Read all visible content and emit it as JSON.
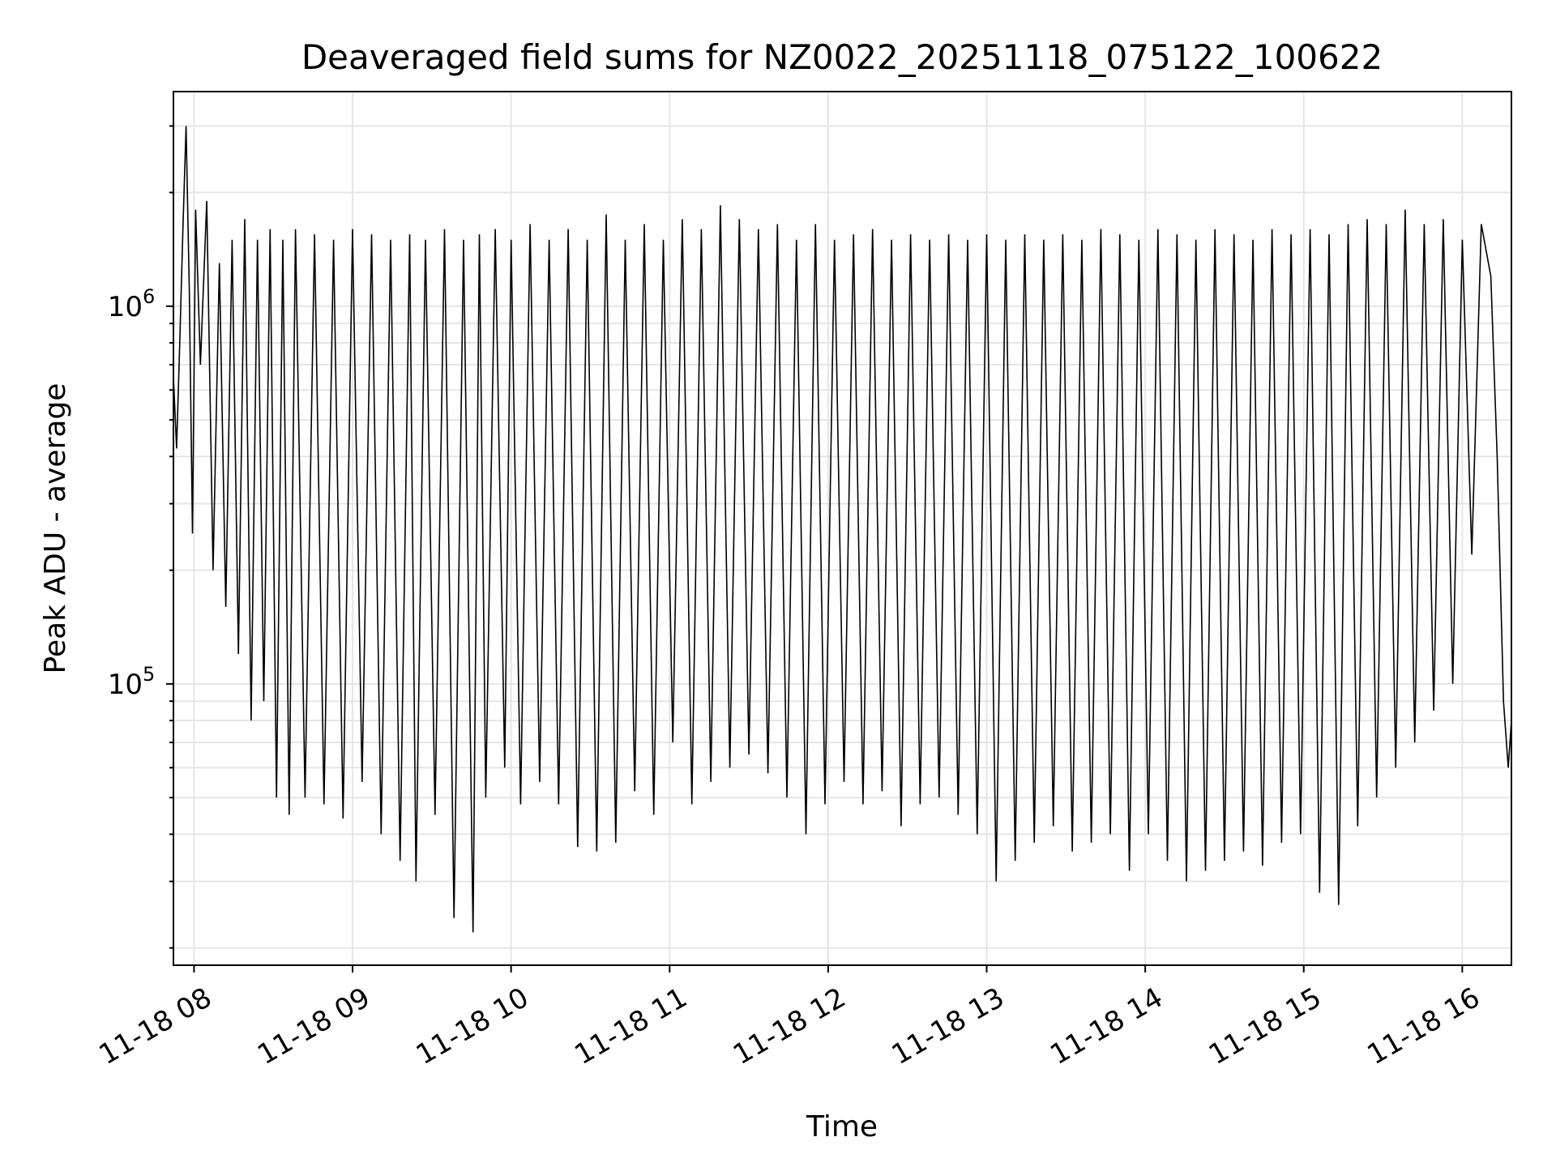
{
  "chart_data": {
    "type": "line",
    "title": "Deaveraged field sums for NZ0022_20251118_075122_100622",
    "xlabel": "Time",
    "ylabel": "Peak ADU - average",
    "yscale": "log",
    "xlim_hours": [
      7.87,
      16.31
    ],
    "ylim": [
      18000,
      3700000
    ],
    "x_ticks": [
      {
        "label": "11-18 08",
        "hour": 8
      },
      {
        "label": "11-18 09",
        "hour": 9
      },
      {
        "label": "11-18 10",
        "hour": 10
      },
      {
        "label": "11-18 11",
        "hour": 11
      },
      {
        "label": "11-18 12",
        "hour": 12
      },
      {
        "label": "11-18 13",
        "hour": 13
      },
      {
        "label": "11-18 14",
        "hour": 14
      },
      {
        "label": "11-18 15",
        "hour": 15
      },
      {
        "label": "11-18 16",
        "hour": 16
      }
    ],
    "y_ticks": [
      {
        "base": "10",
        "exp": "5",
        "value": 100000
      },
      {
        "base": "10",
        "exp": "6",
        "value": 1000000
      }
    ],
    "grid": true,
    "line_color": "#000000",
    "series": [
      {
        "name": "deaveraged field sum",
        "x_hours": [
          7.87,
          7.89,
          7.91,
          7.93,
          7.95,
          7.97,
          7.99,
          8.01,
          8.04,
          8.08,
          8.12,
          8.16,
          8.2,
          8.24,
          8.28,
          8.32,
          8.36,
          8.4,
          8.44,
          8.48,
          8.52,
          8.56,
          8.6,
          8.64,
          8.7,
          8.76,
          8.82,
          8.88,
          8.94,
          9.0,
          9.06,
          9.12,
          9.18,
          9.24,
          9.3,
          9.36,
          9.4,
          9.46,
          9.52,
          9.58,
          9.64,
          9.7,
          9.76,
          9.8,
          9.84,
          9.9,
          9.96,
          10.0,
          10.06,
          10.12,
          10.18,
          10.24,
          10.3,
          10.36,
          10.42,
          10.48,
          10.54,
          10.6,
          10.66,
          10.72,
          10.78,
          10.84,
          10.9,
          10.96,
          11.02,
          11.08,
          11.14,
          11.2,
          11.26,
          11.32,
          11.38,
          11.44,
          11.5,
          11.56,
          11.62,
          11.68,
          11.74,
          11.8,
          11.86,
          11.92,
          11.98,
          12.04,
          12.1,
          12.16,
          12.22,
          12.28,
          12.34,
          12.4,
          12.46,
          12.52,
          12.58,
          12.64,
          12.7,
          12.76,
          12.82,
          12.88,
          12.94,
          13.0,
          13.06,
          13.12,
          13.18,
          13.24,
          13.3,
          13.36,
          13.42,
          13.48,
          13.54,
          13.6,
          13.66,
          13.72,
          13.78,
          13.84,
          13.9,
          13.96,
          14.02,
          14.08,
          14.14,
          14.2,
          14.26,
          14.32,
          14.38,
          14.44,
          14.5,
          14.56,
          14.62,
          14.68,
          14.74,
          14.8,
          14.86,
          14.92,
          14.98,
          15.04,
          15.1,
          15.16,
          15.22,
          15.28,
          15.34,
          15.4,
          15.46,
          15.52,
          15.58,
          15.64,
          15.7,
          15.76,
          15.82,
          15.88,
          15.94,
          16.0,
          16.06,
          16.12,
          16.18,
          16.22,
          16.26,
          16.29,
          16.31
        ],
        "values": [
          650000,
          420000,
          800000,
          1600000,
          3000000,
          1100000,
          250000,
          1800000,
          700000,
          1900000,
          200000,
          1300000,
          160000,
          1500000,
          120000,
          1700000,
          80000,
          1500000,
          90000,
          1600000,
          50000,
          1500000,
          45000,
          1600000,
          50000,
          1550000,
          48000,
          1500000,
          44000,
          1600000,
          55000,
          1550000,
          40000,
          1500000,
          34000,
          1550000,
          30000,
          1500000,
          45000,
          1600000,
          24000,
          1500000,
          22000,
          1550000,
          50000,
          1600000,
          60000,
          1500000,
          48000,
          1650000,
          55000,
          1500000,
          48000,
          1600000,
          37000,
          1500000,
          36000,
          1750000,
          38000,
          1500000,
          52000,
          1650000,
          45000,
          1500000,
          70000,
          1700000,
          48000,
          1600000,
          55000,
          1850000,
          60000,
          1700000,
          65000,
          1600000,
          58000,
          1650000,
          50000,
          1500000,
          40000,
          1650000,
          48000,
          1500000,
          55000,
          1550000,
          48000,
          1600000,
          52000,
          1500000,
          42000,
          1550000,
          48000,
          1500000,
          50000,
          1550000,
          45000,
          1500000,
          40000,
          1550000,
          30000,
          1500000,
          34000,
          1550000,
          38000,
          1500000,
          42000,
          1550000,
          36000,
          1500000,
          38000,
          1600000,
          40000,
          1550000,
          32000,
          1500000,
          40000,
          1600000,
          34000,
          1550000,
          30000,
          1500000,
          32000,
          1600000,
          34000,
          1550000,
          36000,
          1500000,
          33000,
          1600000,
          38000,
          1550000,
          40000,
          1600000,
          28000,
          1550000,
          26000,
          1650000,
          42000,
          1700000,
          50000,
          1650000,
          60000,
          1800000,
          70000,
          1650000,
          85000,
          1700000,
          100000,
          1500000,
          220000,
          1650000,
          1200000,
          400000,
          90000,
          60000,
          80000
        ]
      }
    ]
  }
}
